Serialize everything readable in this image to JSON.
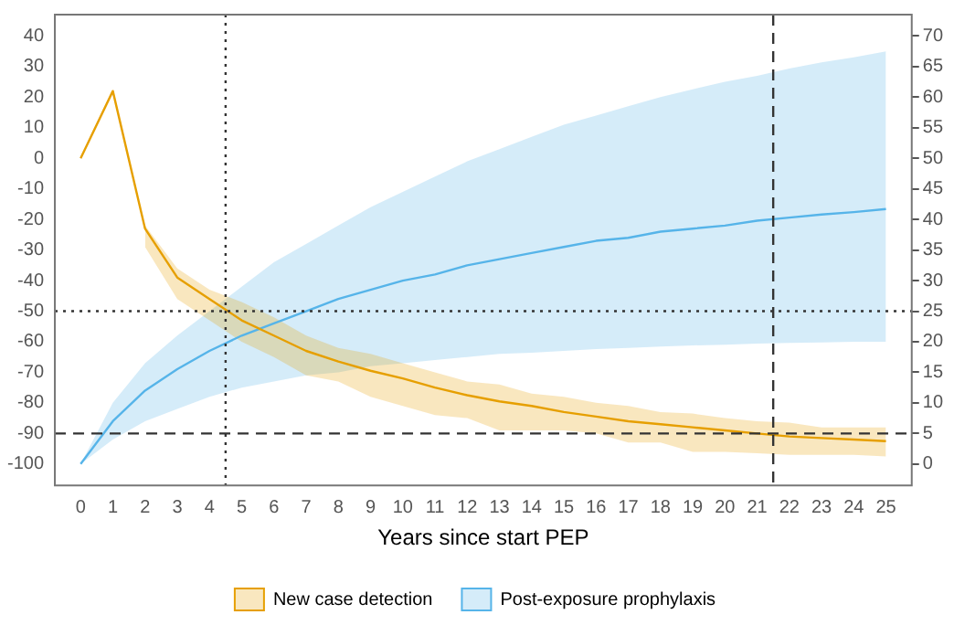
{
  "chart_data": {
    "type": "line",
    "xlabel": "Years since start PEP",
    "x": [
      0,
      1,
      2,
      3,
      4,
      5,
      6,
      7,
      8,
      9,
      10,
      11,
      12,
      13,
      14,
      15,
      16,
      17,
      18,
      19,
      20,
      21,
      22,
      23,
      24,
      25
    ],
    "xlim": [
      -0.8,
      25.8
    ],
    "xticks": [
      0,
      1,
      2,
      3,
      4,
      5,
      6,
      7,
      8,
      9,
      10,
      11,
      12,
      13,
      14,
      15,
      16,
      17,
      18,
      19,
      20,
      21,
      22,
      23,
      24,
      25
    ],
    "ylim": [
      -107,
      47
    ],
    "yticks": [
      -100,
      -90,
      -80,
      -70,
      -60,
      -50,
      -40,
      -30,
      -20,
      -10,
      0,
      10,
      20,
      30,
      40
    ],
    "y2lim": [
      -3.5,
      73.5
    ],
    "y2ticks": [
      0,
      5,
      10,
      15,
      20,
      25,
      30,
      35,
      40,
      45,
      50,
      55,
      60,
      65,
      70
    ],
    "series": [
      {
        "name": "New case detection",
        "color": "#e69f00",
        "values": [
          0,
          22,
          -23,
          -39,
          -46,
          -53,
          -58,
          -63,
          -66.5,
          -69.5,
          -72,
          -75,
          -77.5,
          -79.5,
          -81,
          -83,
          -84.5,
          -86,
          -87,
          -88,
          -89,
          -90,
          -91,
          -91.5,
          -92,
          -92.5
        ],
        "lower": [
          null,
          null,
          -29,
          -46,
          -53,
          -60,
          -65,
          -71,
          -73,
          -78,
          -81,
          -84,
          -85,
          -89,
          -89,
          -89,
          -90,
          -93,
          -93,
          -96,
          -96,
          -96.5,
          -97,
          -97,
          -97,
          -97.5
        ],
        "upper": [
          null,
          null,
          -22,
          -36,
          -43,
          -47,
          -52,
          -58,
          -62,
          -64,
          -67,
          -70,
          -73,
          -74,
          -77,
          -78,
          -80,
          -81,
          -83,
          -83.5,
          -85,
          -86,
          -86.5,
          -88,
          -88,
          -88
        ]
      },
      {
        "name": "Post-exposure prophylaxis",
        "color": "#56b4e9",
        "axis": "y2",
        "values": [
          0,
          7,
          12,
          15.5,
          18.5,
          21,
          23,
          25,
          27,
          28.5,
          30,
          31,
          32.5,
          33.5,
          34.5,
          35.5,
          36.5,
          37,
          38,
          38.5,
          39,
          39.8,
          40.3,
          40.8,
          41.2,
          41.7
        ],
        "lower": [
          0,
          4,
          7,
          9,
          11,
          12.5,
          13.5,
          14.5,
          15,
          16,
          16.5,
          17,
          17.5,
          18,
          18.2,
          18.5,
          18.8,
          19,
          19.2,
          19.4,
          19.5,
          19.7,
          19.8,
          19.9,
          20,
          20
        ],
        "upper": [
          0,
          10,
          16.5,
          21,
          25,
          29,
          33,
          36,
          39,
          42,
          44.5,
          47,
          49.5,
          51.5,
          53.5,
          55.5,
          57,
          58.5,
          60,
          61.3,
          62.5,
          63.5,
          64.7,
          65.7,
          66.5,
          67.5
        ]
      }
    ],
    "ref_lines": [
      {
        "axis": "y",
        "value": -50,
        "line_style": "dotted"
      },
      {
        "axis": "x",
        "value": 4.5,
        "line_style": "dotted"
      },
      {
        "axis": "y",
        "value": -90,
        "line_style": "dashed"
      },
      {
        "axis": "x",
        "value": 21.5,
        "line_style": "dashed"
      }
    ],
    "legend": "bottom",
    "grid": false,
    "marker": "none",
    "line_style": "solid"
  }
}
